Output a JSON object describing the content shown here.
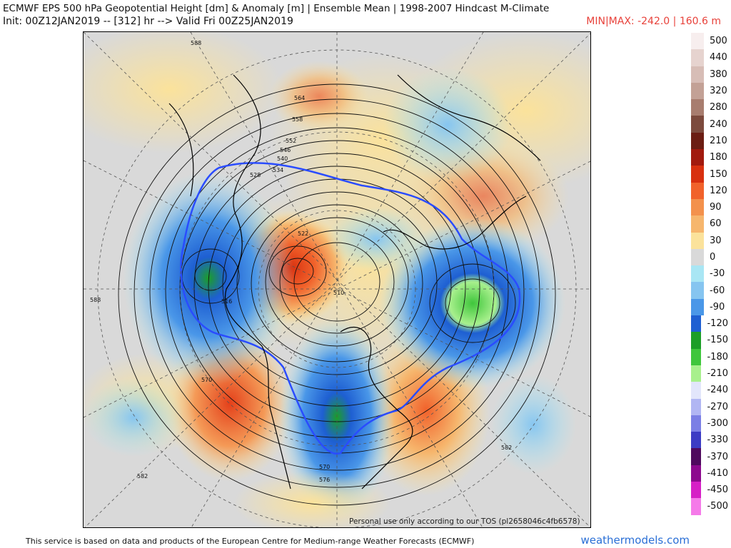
{
  "title": "ECMWF EPS 500 hPa Geopotential Height [dm] & Anomaly [m] | Ensemble Mean | 1998-2007 Hindcast M-Climate",
  "init_line": "Init: 00Z12JAN2019 -- [312] hr --> Valid Fri 00Z25JAN2019",
  "minmax": "MIN|MAX: -242.0 | 160.6 m",
  "tos_note": "Personal use only according to our TOS (pl2658046c4fb6578)",
  "footer": "This service is based on data and products of the European Centre for Medium-range Weather Forecasts (ECMWF)",
  "brand": "weathermodels.com",
  "colorbar": [
    {
      "label": "500",
      "color": "#f7eeee"
    },
    {
      "label": "440",
      "color": "#e6d3cf"
    },
    {
      "label": "380",
      "color": "#d7bdb6"
    },
    {
      "label": "320",
      "color": "#c3a196"
    },
    {
      "label": "280",
      "color": "#a87d6f"
    },
    {
      "label": "240",
      "color": "#7c4a3d"
    },
    {
      "label": "210",
      "color": "#6b1d13"
    },
    {
      "label": "180",
      "color": "#a11a0e"
    },
    {
      "label": "150",
      "color": "#d8300f"
    },
    {
      "label": "120",
      "color": "#f1622b"
    },
    {
      "label": "90",
      "color": "#f3914c"
    },
    {
      "label": "60",
      "color": "#f6b66d"
    },
    {
      "label": "30",
      "color": "#fbe29b"
    },
    {
      "label": "0",
      "color": "#d9d9d9"
    },
    {
      "label": "-30",
      "color": "#a9e6f4"
    },
    {
      "label": "-60",
      "color": "#86c5f0"
    },
    {
      "label": "-90",
      "color": "#4a97e8"
    },
    {
      "label": "-120",
      "color": "#1e5fd2"
    },
    {
      "label": "-150",
      "color": "#1c9e27"
    },
    {
      "label": "-180",
      "color": "#3fc63c"
    },
    {
      "label": "-210",
      "color": "#a8f08d"
    },
    {
      "label": "-240",
      "color": "#e2e6fb"
    },
    {
      "label": "-270",
      "color": "#b1b6f3"
    },
    {
      "label": "-300",
      "color": "#7b7fe5"
    },
    {
      "label": "-330",
      "color": "#3c3cc4"
    },
    {
      "label": "-370",
      "color": "#4f0a5e"
    },
    {
      "label": "-410",
      "color": "#8d0a8e"
    },
    {
      "label": "-450",
      "color": "#d61fc6"
    },
    {
      "label": "-500",
      "color": "#f57ae9"
    }
  ],
  "contour_labels": [
    "588",
    "570",
    "564",
    "558",
    "552",
    "546",
    "540",
    "534",
    "528",
    "522",
    "516",
    "510",
    "582",
    "576",
    "570",
    "582",
    "588"
  ]
}
